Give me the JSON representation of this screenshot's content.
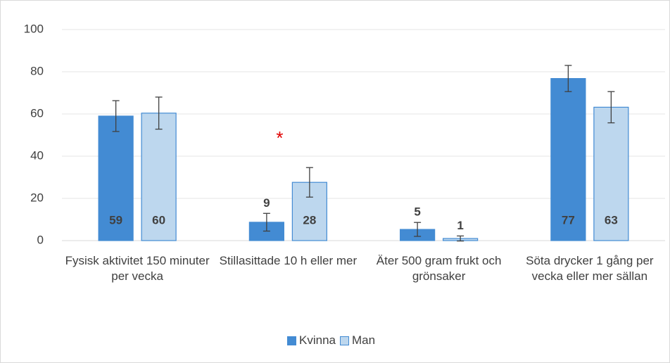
{
  "chart_data": {
    "type": "bar",
    "categories": [
      "Fysisk aktivitet 150 minuter per vecka",
      "Stillasittade 10 h eller mer",
      "Äter 500 gram frukt och grönsaker",
      "Söta drycker 1 gång per vecka eller mer sällan"
    ],
    "series": [
      {
        "name": "Kvinna",
        "color": "#438bd3",
        "values": [
          59,
          8.7,
          5.3,
          76.8
        ],
        "value_labels": [
          "59",
          "9",
          "5",
          "77"
        ],
        "errors": [
          7.3,
          4.2,
          3.3,
          6.2
        ]
      },
      {
        "name": "Man",
        "color": "#bdd7ee",
        "values": [
          60.4,
          27.6,
          1,
          63.2
        ],
        "value_labels": [
          "60",
          "28",
          "1",
          "63"
        ],
        "errors": [
          7.6,
          7,
          1.2,
          7.4
        ]
      }
    ],
    "annotation": "*",
    "ylim": [
      0,
      100
    ],
    "yticks": [
      0,
      20,
      40,
      60,
      80,
      100
    ],
    "grid": true,
    "legend": "bottom"
  }
}
